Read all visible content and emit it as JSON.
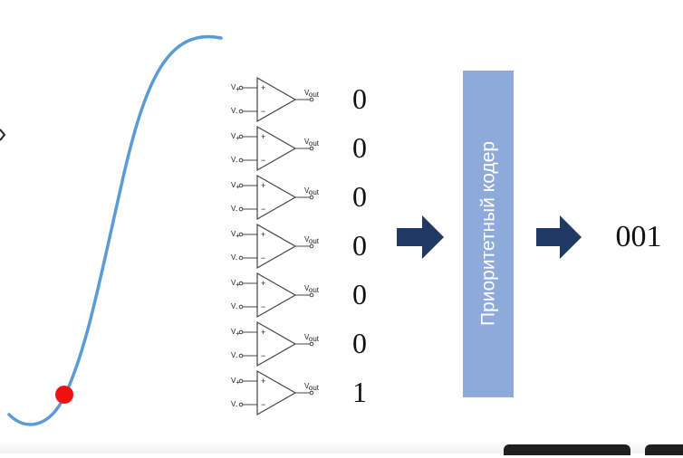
{
  "diagram": {
    "comparator_outputs": [
      "0",
      "0",
      "0",
      "0",
      "0",
      "0",
      "1"
    ],
    "comparator": {
      "plus_input_label": "V",
      "plus_input_sub": "+",
      "minus_input_label": "V",
      "minus_input_sub": "-",
      "output_label": "V",
      "output_sub": "out",
      "plus_sign": "+",
      "minus_sign": "−"
    },
    "encoder_label": "Приоритетный кодер",
    "encoder_output": "001",
    "colors": {
      "curve": "#5b9bd5",
      "sample_point": "#ee1111",
      "arrow": "#1f3864",
      "encoder_box": "#8eaadb",
      "comparator_stroke": "#444444"
    }
  }
}
